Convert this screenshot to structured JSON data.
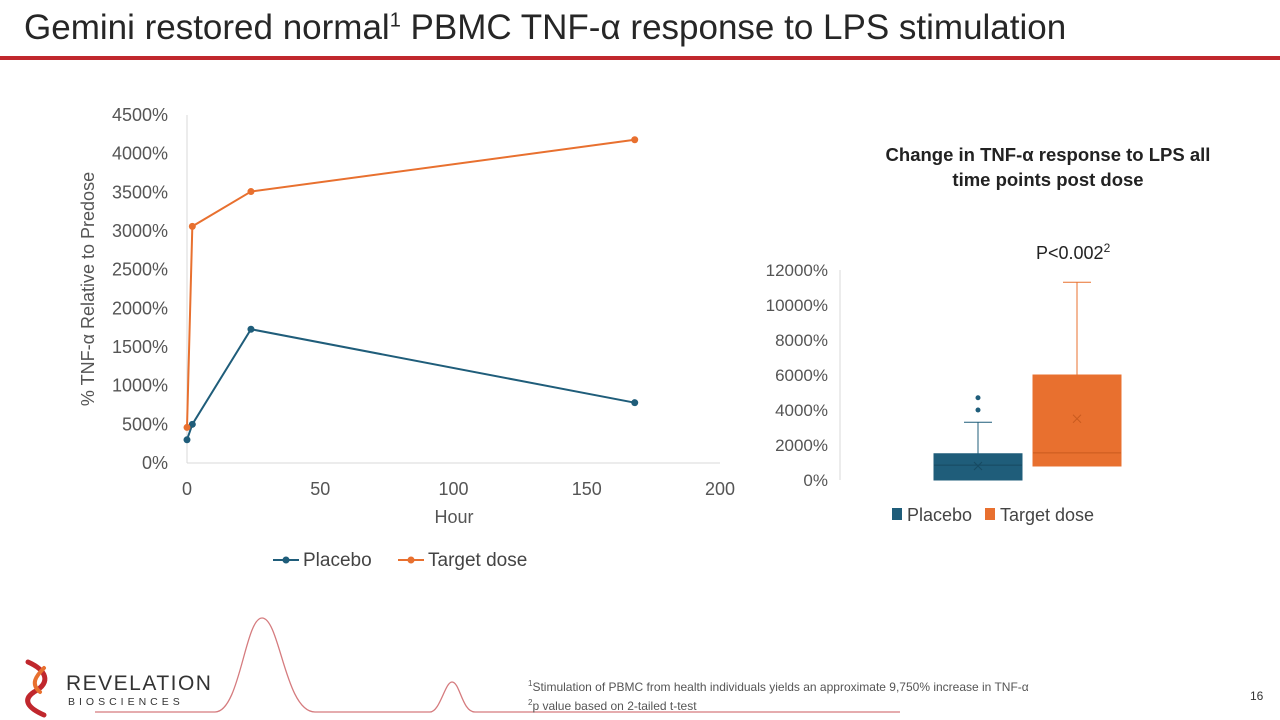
{
  "slide": {
    "title_main": "Gemini restored normal",
    "title_sup": "1",
    "title_rest": " PBMC TNF-α response to LPS stimulation",
    "page_number": "16",
    "footnote_1_sup": "1",
    "footnote_1": "Stimulation of PBMC from health individuals yields an approximate 9,750% increase in TNF-α",
    "footnote_2_sup": "2",
    "footnote_2": "p value based on 2-tailed t-test",
    "logo_name": "REVELATION",
    "logo_sub": "BIOSCIENCES",
    "box_title": "Change in TNF-α response to LPS all time points post dose",
    "p_value": "P<0.002",
    "p_value_sup": "2"
  },
  "colors": {
    "placebo": "#1f5d7a",
    "target": "#e8702f",
    "accent": "#c0272d",
    "axis": "#d9d9d9"
  },
  "chart_data": [
    {
      "type": "line",
      "xlabel": "Hour",
      "ylabel": "% TNF-α Relative to Predose",
      "xlim": [
        0,
        200
      ],
      "ylim": [
        0,
        4500
      ],
      "xticks": [
        0,
        50,
        100,
        150,
        200
      ],
      "yticks": [
        0,
        500,
        1000,
        1500,
        2000,
        2500,
        3000,
        3500,
        4000,
        4500
      ],
      "ytick_suffix": "%",
      "legend_position": "bottom",
      "series": [
        {
          "name": "Placebo",
          "x": [
            0,
            2,
            24,
            168
          ],
          "y": [
            300,
            500,
            1730,
            780
          ]
        },
        {
          "name": "Target dose",
          "x": [
            0,
            2,
            24,
            168
          ],
          "y": [
            460,
            3060,
            3510,
            4180
          ]
        }
      ]
    },
    {
      "type": "box",
      "ylim": [
        0,
        12000
      ],
      "yticks": [
        0,
        2000,
        4000,
        6000,
        8000,
        10000,
        12000
      ],
      "ytick_suffix": "%",
      "legend_position": "bottom",
      "series": [
        {
          "name": "Placebo",
          "min": 0,
          "q1": 0,
          "median": 850,
          "q3": 1500,
          "max": 3300,
          "mean": 800,
          "outliers": [
            4000,
            4700
          ]
        },
        {
          "name": "Target dose",
          "min": 0,
          "q1": 800,
          "median": 1550,
          "q3": 6000,
          "max": 11300,
          "mean": 3500,
          "outliers": []
        }
      ]
    }
  ]
}
